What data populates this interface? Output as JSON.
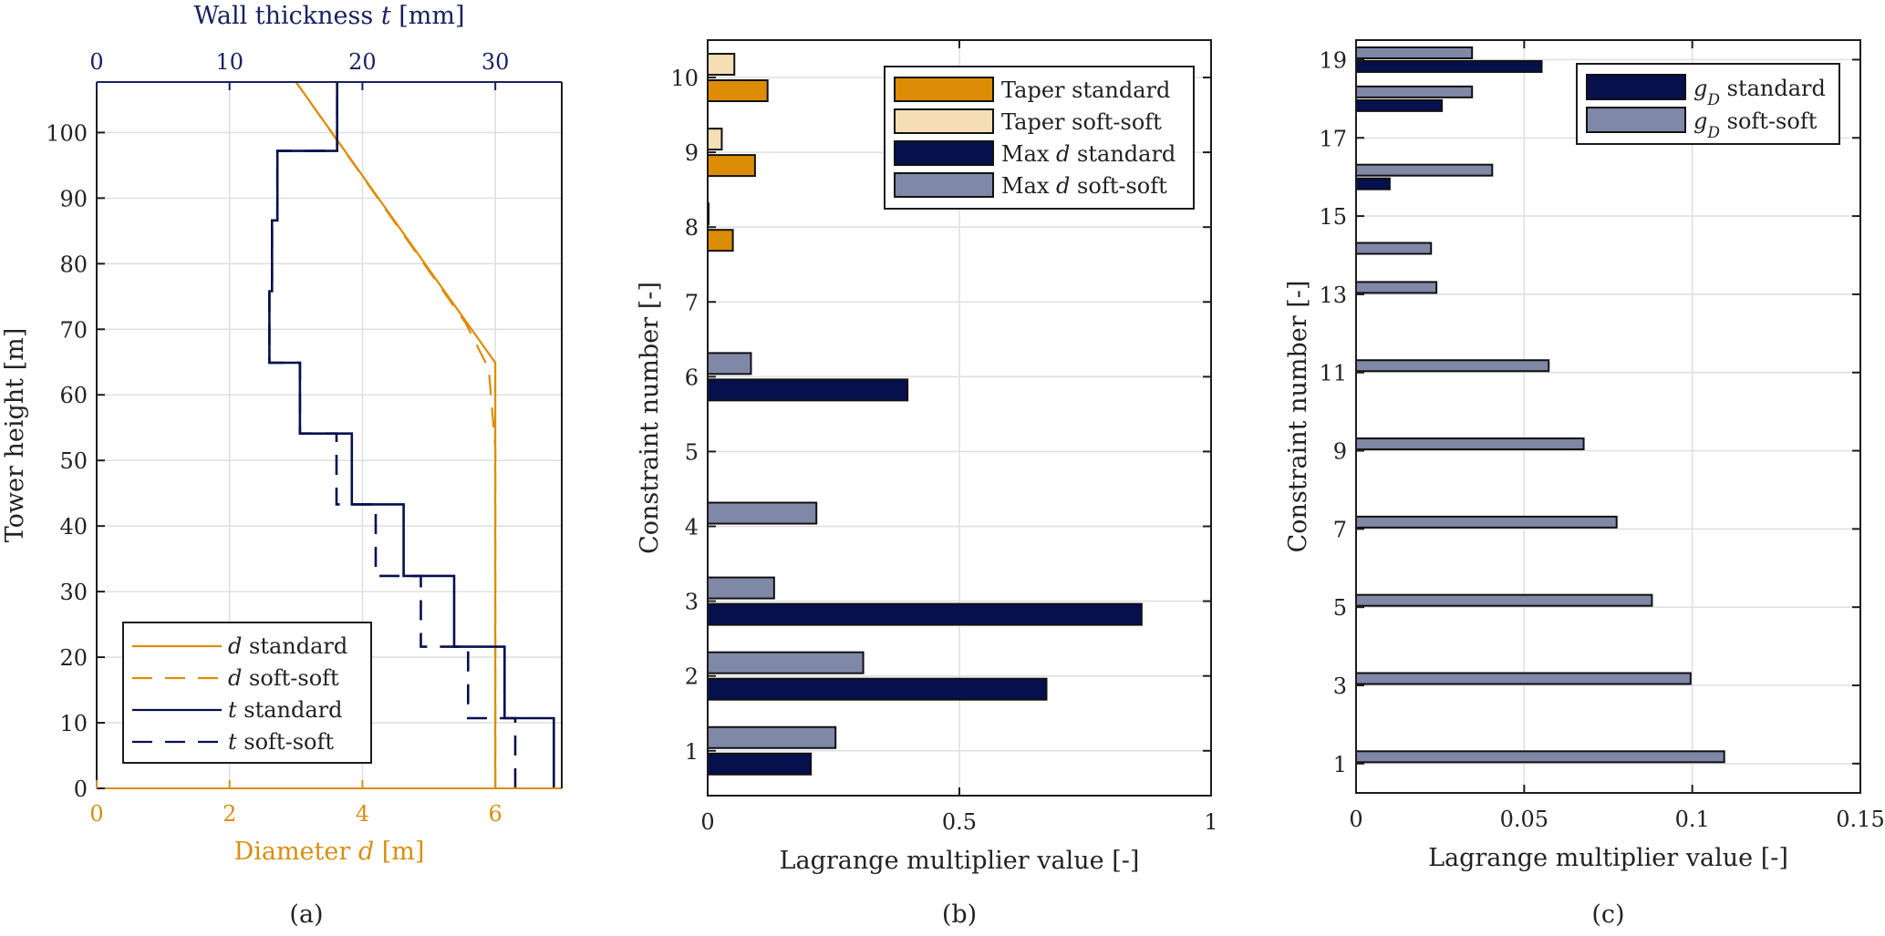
{
  "colors": {
    "orange": "#dd8c05",
    "orange_light": "#f5ddb4",
    "navy": "#05104d",
    "navy_light": "#8088a8",
    "axis_navy": "#1a2163",
    "axis_orange": "#d98e12",
    "text": "#222222",
    "grid": "#e0e0e0"
  },
  "chart_data": [
    {
      "id": "a",
      "type": "line",
      "caption": "(a)",
      "ylabel": "Tower height [m]",
      "ylim": [
        0,
        107.7
      ],
      "yticks": [
        0,
        10,
        20,
        30,
        40,
        50,
        60,
        70,
        80,
        90,
        100
      ],
      "x_bottom": {
        "label_prefix": "Diameter ",
        "label_var": "d",
        "label_suffix": " [m]",
        "lim": [
          0,
          7
        ],
        "ticks": [
          0,
          2,
          4,
          6
        ]
      },
      "x_top": {
        "label_prefix": "Wall thickness ",
        "label_var": "t",
        "label_suffix": " [mm]",
        "lim": [
          0,
          35
        ],
        "ticks": [
          0,
          10,
          20,
          30
        ]
      },
      "grid": true,
      "legend_position": "bottom-left",
      "series": [
        {
          "name_var": "d",
          "name": " standard",
          "axis": "bottom",
          "style": "solid",
          "color": "orange",
          "points": [
            [
              6.0,
              0
            ],
            [
              6.0,
              64.9
            ],
            [
              3.0,
              107.7
            ]
          ]
        },
        {
          "name_var": "d",
          "name": " soft-soft",
          "axis": "bottom",
          "style": "dashed",
          "color": "orange",
          "points": [
            [
              6.0,
              0
            ],
            [
              6.0,
              52
            ],
            [
              5.95,
              58
            ],
            [
              5.9,
              64
            ],
            [
              5.7,
              68
            ],
            [
              5.55,
              71
            ],
            [
              3.0,
              107.7
            ]
          ]
        },
        {
          "name_var": "t",
          "name": " standard",
          "axis": "top",
          "style": "solid",
          "color": "navy",
          "points": [
            [
              34.4,
              0
            ],
            [
              34.4,
              10.7
            ],
            [
              30.7,
              10.7
            ],
            [
              30.7,
              21.6
            ],
            [
              26.9,
              21.6
            ],
            [
              26.9,
              32.4
            ],
            [
              23.1,
              32.4
            ],
            [
              23.1,
              43.3
            ],
            [
              19.2,
              43.3
            ],
            [
              19.2,
              54.1
            ],
            [
              15.3,
              54.1
            ],
            [
              15.3,
              64.9
            ],
            [
              13.0,
              64.9
            ],
            [
              13.0,
              75.8
            ],
            [
              13.2,
              75.8
            ],
            [
              13.2,
              86.6
            ],
            [
              13.6,
              86.6
            ],
            [
              13.6,
              97.2
            ],
            [
              18.1,
              97.2
            ],
            [
              18.1,
              107.7
            ]
          ]
        },
        {
          "name_var": "t",
          "name": " soft-soft",
          "axis": "top",
          "style": "dashed",
          "color": "navy",
          "points": [
            [
              31.5,
              0
            ],
            [
              31.5,
              10.7
            ],
            [
              27.95,
              10.7
            ],
            [
              27.95,
              21.6
            ],
            [
              24.4,
              21.6
            ],
            [
              24.4,
              32.4
            ],
            [
              21.0,
              32.4
            ],
            [
              21.0,
              43.3
            ],
            [
              18.05,
              43.3
            ],
            [
              18.05,
              54.1
            ],
            [
              15.3,
              54.1
            ],
            [
              15.3,
              64.9
            ],
            [
              13.0,
              64.9
            ],
            [
              13.0,
              75.8
            ],
            [
              13.2,
              75.8
            ],
            [
              13.2,
              86.6
            ],
            [
              13.6,
              86.6
            ],
            [
              13.6,
              97.2
            ],
            [
              18.1,
              97.2
            ],
            [
              18.1,
              107.7
            ]
          ]
        }
      ]
    },
    {
      "id": "b",
      "type": "bar",
      "orientation": "horizontal",
      "caption": "(b)",
      "xlabel": "Lagrange multiplier value [-]",
      "ylabel": "Constraint number [-]",
      "xlim": [
        0,
        1
      ],
      "xticks": [
        0,
        0.5,
        1
      ],
      "xtick_labels": [
        "0",
        "0.5",
        "1"
      ],
      "ylim": [
        0.4,
        10.5
      ],
      "yticks": [
        1,
        2,
        3,
        4,
        5,
        6,
        7,
        8,
        9,
        10
      ],
      "categories": [
        1,
        2,
        3,
        4,
        5,
        6,
        7,
        8,
        9,
        10
      ],
      "grid": true,
      "legend_position": "top-right",
      "series": [
        {
          "name": "Taper standard",
          "color": "orange",
          "slot": "low",
          "values": [
            0,
            0,
            0,
            0,
            0,
            0,
            0,
            0.05,
            0.094,
            0.119
          ]
        },
        {
          "name": "Taper soft-soft",
          "color": "orange_light",
          "slot": "high",
          "values": [
            0,
            0,
            0,
            0,
            0,
            0,
            0,
            0.001,
            0.028,
            0.053
          ]
        },
        {
          "name_prefix": "Max ",
          "name_var": "d",
          "name": " standard",
          "color": "navy",
          "slot": "low",
          "values": [
            0.205,
            0.673,
            0.862,
            0,
            0,
            0.397,
            0,
            0,
            0,
            0
          ]
        },
        {
          "name_prefix": "Max ",
          "name_var": "d",
          "name": " soft-soft",
          "color": "navy_light",
          "slot": "high",
          "values": [
            0.254,
            0.309,
            0.132,
            0.216,
            0,
            0.086,
            0,
            0,
            0,
            0
          ]
        }
      ]
    },
    {
      "id": "c",
      "type": "bar",
      "orientation": "horizontal",
      "caption": "(c)",
      "xlabel": "Lagrange multiplier value [-]",
      "ylabel": "Constraint number [-]",
      "xlim": [
        0,
        0.15
      ],
      "xticks": [
        0,
        0.05,
        0.1,
        0.15
      ],
      "xtick_labels": [
        "0",
        "0.05",
        "0.1",
        "0.15"
      ],
      "ylim": [
        0.25,
        19.5
      ],
      "yticks": [
        1,
        3,
        5,
        7,
        9,
        11,
        13,
        15,
        17,
        19
      ],
      "categories": [
        1,
        3,
        5,
        7,
        9,
        11,
        13,
        14,
        16,
        18,
        19
      ],
      "grid": true,
      "legend_position": "top-right",
      "series": [
        {
          "name_var": "g",
          "name_sub": "D",
          "name": " standard",
          "color": "navy",
          "slot": "low",
          "values": [
            0,
            0,
            0,
            0,
            0,
            0,
            0,
            0,
            0.01,
            0.0255,
            0.0552
          ]
        },
        {
          "name_var": "g",
          "name_sub": "D",
          "name": " soft-soft",
          "color": "navy_light",
          "slot": "high",
          "values": [
            0.1095,
            0.0995,
            0.088,
            0.0775,
            0.0677,
            0.0573,
            0.0239,
            0.0223,
            0.0405,
            0.0345,
            0.0345
          ]
        }
      ]
    }
  ]
}
